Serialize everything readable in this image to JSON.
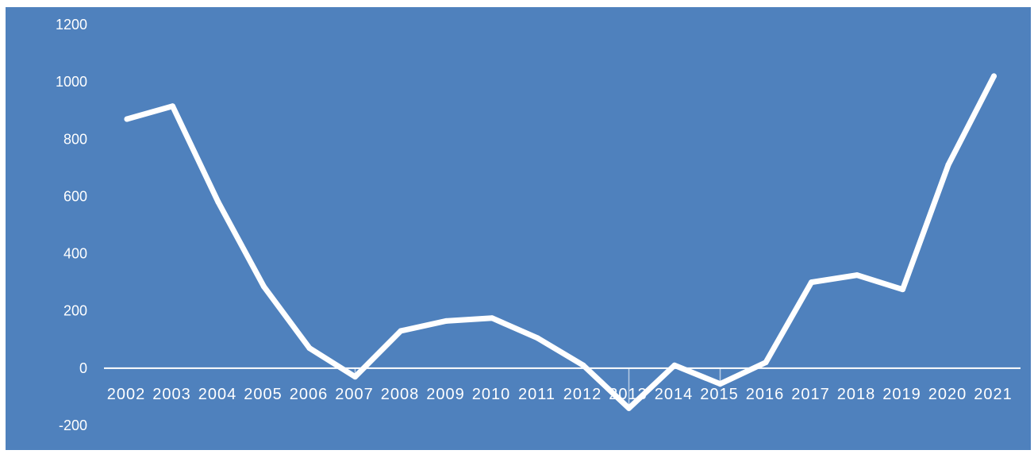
{
  "chart_data": {
    "type": "line",
    "title": "",
    "xlabel": "",
    "ylabel": "",
    "ylim": [
      -200,
      1200
    ],
    "yticks": [
      -200,
      0,
      200,
      400,
      600,
      800,
      1000,
      1200
    ],
    "categories": [
      "2002",
      "2003",
      "2004",
      "2005",
      "2006",
      "2007",
      "2008",
      "2009",
      "2010",
      "2011",
      "2012",
      "2013",
      "2014",
      "2015",
      "2016",
      "2017",
      "2018",
      "2019",
      "2020",
      "2021"
    ],
    "series": [
      {
        "values": [
          870,
          915,
          580,
          285,
          70,
          -30,
          130,
          165,
          175,
          105,
          10,
          -140,
          10,
          -55,
          20,
          300,
          325,
          275,
          710,
          1020
        ]
      }
    ],
    "grid": false,
    "drop_lines": true,
    "colors": {
      "background": "#4f81bd",
      "line": "#ffffff",
      "axis": "#ffffff",
      "text": "#ffffff"
    }
  }
}
